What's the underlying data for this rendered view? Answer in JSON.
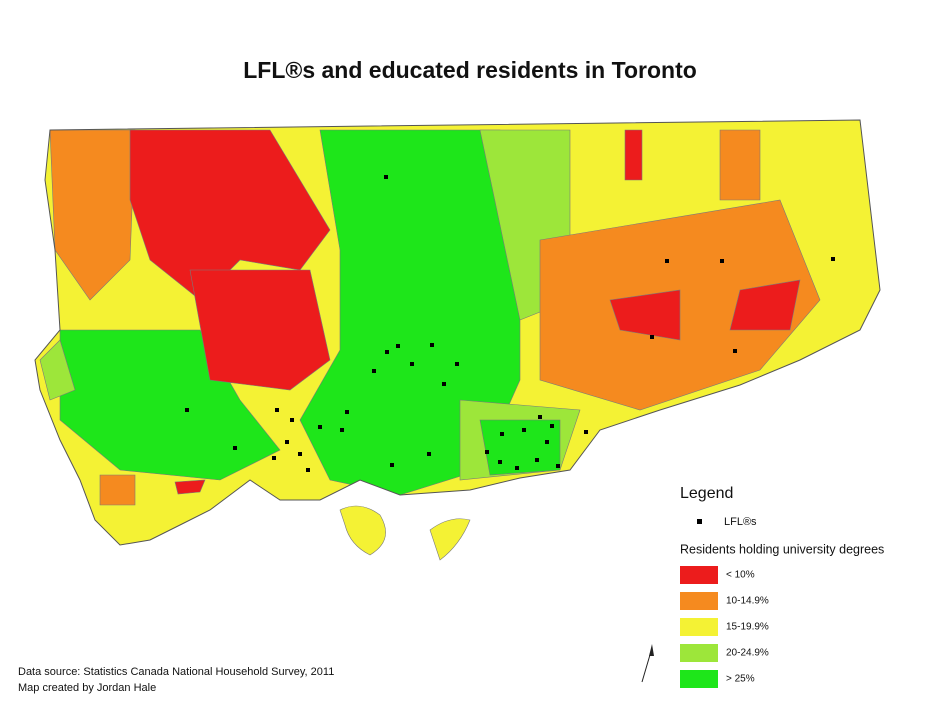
{
  "title": "LFL®s and educated residents in Toronto",
  "legend": {
    "title": "Legend",
    "points": "LFL®s",
    "classes_title": "Residents holding university degrees",
    "classes": [
      {
        "label": "< 10%",
        "color": "#ec1c1c"
      },
      {
        "label": "10-14.9%",
        "color": "#f58a1f"
      },
      {
        "label": "15-19.9%",
        "color": "#f4f234"
      },
      {
        "label": "20-24.9%",
        "color": "#9de63a"
      },
      {
        "label": "> 25%",
        "color": "#1ee61a"
      }
    ]
  },
  "footer": [
    "Data source: Statistics Canada National Household Survey, 2011",
    "Map created by Jordan Hale"
  ]
}
